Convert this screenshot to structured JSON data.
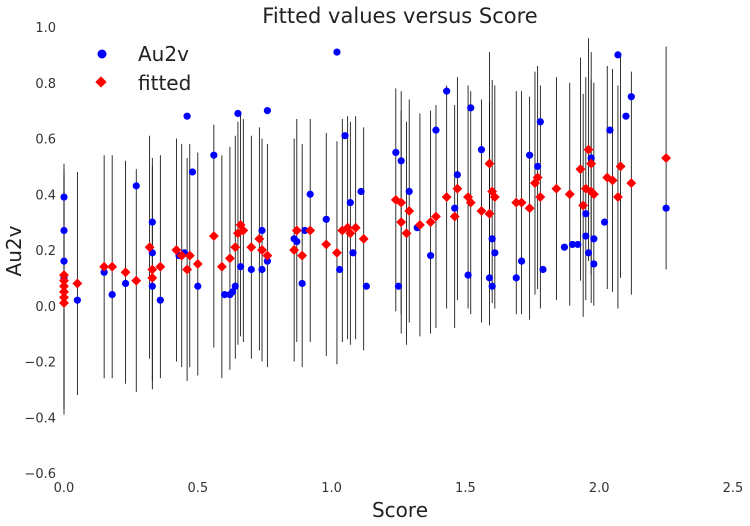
{
  "chart_data": {
    "type": "scatter",
    "title": "Fitted values versus Score",
    "xlabel": "Score",
    "ylabel": "Au2v",
    "xlim": [
      0.0,
      2.5
    ],
    "ylim": [
      -0.6,
      1.0
    ],
    "xticks": [
      "0.0",
      "0.5",
      "1.0",
      "1.5",
      "2.0",
      "2.5"
    ],
    "yticks": [
      "−0.6",
      "−0.4",
      "−0.2",
      "0.0",
      "0.2",
      "0.4",
      "0.6",
      "0.8",
      "1.0"
    ],
    "grid": false,
    "legend": "top-left",
    "series": [
      {
        "name": "Au2v",
        "color": "#0000ff",
        "marker": "circle",
        "points": [
          [
            0.0,
            0.39
          ],
          [
            0.0,
            0.27
          ],
          [
            0.0,
            0.16
          ],
          [
            0.0,
            0.1
          ],
          [
            0.05,
            0.02
          ],
          [
            0.15,
            0.12
          ],
          [
            0.18,
            0.04
          ],
          [
            0.23,
            0.08
          ],
          [
            0.27,
            0.43
          ],
          [
            0.33,
            0.3
          ],
          [
            0.33,
            0.19
          ],
          [
            0.33,
            0.07
          ],
          [
            0.36,
            0.02
          ],
          [
            0.43,
            0.18
          ],
          [
            0.45,
            0.19
          ],
          [
            0.46,
            0.68
          ],
          [
            0.48,
            0.48
          ],
          [
            0.5,
            0.07
          ],
          [
            0.56,
            0.54
          ],
          [
            0.6,
            0.04
          ],
          [
            0.62,
            0.04
          ],
          [
            0.63,
            0.05
          ],
          [
            0.64,
            0.07
          ],
          [
            0.65,
            0.69
          ],
          [
            0.66,
            0.14
          ],
          [
            0.7,
            0.13
          ],
          [
            0.74,
            0.27
          ],
          [
            0.74,
            0.13
          ],
          [
            0.76,
            0.7
          ],
          [
            0.76,
            0.16
          ],
          [
            0.86,
            0.24
          ],
          [
            0.87,
            0.23
          ],
          [
            0.89,
            0.08
          ],
          [
            0.9,
            0.27
          ],
          [
            0.92,
            0.4
          ],
          [
            0.98,
            0.31
          ],
          [
            1.02,
            0.91
          ],
          [
            1.03,
            0.13
          ],
          [
            1.05,
            0.61
          ],
          [
            1.07,
            0.37
          ],
          [
            1.08,
            0.19
          ],
          [
            1.11,
            0.41
          ],
          [
            1.13,
            0.07
          ],
          [
            1.24,
            0.55
          ],
          [
            1.25,
            0.07
          ],
          [
            1.26,
            0.52
          ],
          [
            1.29,
            0.41
          ],
          [
            1.32,
            0.28
          ],
          [
            1.37,
            0.18
          ],
          [
            1.39,
            0.63
          ],
          [
            1.43,
            0.77
          ],
          [
            1.46,
            0.35
          ],
          [
            1.47,
            0.47
          ],
          [
            1.51,
            0.11
          ],
          [
            1.52,
            0.71
          ],
          [
            1.56,
            0.56
          ],
          [
            1.59,
            0.1
          ],
          [
            1.6,
            0.24
          ],
          [
            1.6,
            0.07
          ],
          [
            1.61,
            0.19
          ],
          [
            1.69,
            0.1
          ],
          [
            1.71,
            0.16
          ],
          [
            1.74,
            0.54
          ],
          [
            1.77,
            0.5
          ],
          [
            1.78,
            0.66
          ],
          [
            1.79,
            0.13
          ],
          [
            1.87,
            0.21
          ],
          [
            1.9,
            0.22
          ],
          [
            1.92,
            0.22
          ],
          [
            1.95,
            0.25
          ],
          [
            1.95,
            0.33
          ],
          [
            1.96,
            0.19
          ],
          [
            1.97,
            0.53
          ],
          [
            1.98,
            0.24
          ],
          [
            1.98,
            0.15
          ],
          [
            2.02,
            0.3
          ],
          [
            2.04,
            0.63
          ],
          [
            2.07,
            0.9
          ],
          [
            2.1,
            0.68
          ],
          [
            2.12,
            0.75
          ],
          [
            2.25,
            0.35
          ]
        ]
      },
      {
        "name": "fitted",
        "color": "#ff0000",
        "marker": "diamond",
        "points": [
          [
            0.0,
            0.11
          ],
          [
            0.0,
            0.09
          ],
          [
            0.0,
            0.07
          ],
          [
            0.0,
            0.05
          ],
          [
            0.0,
            0.03
          ],
          [
            0.0,
            0.01
          ],
          [
            0.05,
            0.08
          ],
          [
            0.15,
            0.14
          ],
          [
            0.18,
            0.14
          ],
          [
            0.23,
            0.12
          ],
          [
            0.27,
            0.09
          ],
          [
            0.32,
            0.21
          ],
          [
            0.33,
            0.13
          ],
          [
            0.33,
            0.1
          ],
          [
            0.36,
            0.14
          ],
          [
            0.42,
            0.2
          ],
          [
            0.44,
            0.18
          ],
          [
            0.46,
            0.13
          ],
          [
            0.47,
            0.18
          ],
          [
            0.5,
            0.15
          ],
          [
            0.56,
            0.25
          ],
          [
            0.59,
            0.14
          ],
          [
            0.62,
            0.17
          ],
          [
            0.64,
            0.21
          ],
          [
            0.65,
            0.26
          ],
          [
            0.66,
            0.29
          ],
          [
            0.67,
            0.27
          ],
          [
            0.7,
            0.21
          ],
          [
            0.73,
            0.24
          ],
          [
            0.74,
            0.2
          ],
          [
            0.76,
            0.18
          ],
          [
            0.86,
            0.2
          ],
          [
            0.87,
            0.27
          ],
          [
            0.89,
            0.18
          ],
          [
            0.92,
            0.27
          ],
          [
            0.98,
            0.22
          ],
          [
            1.02,
            0.19
          ],
          [
            1.04,
            0.27
          ],
          [
            1.06,
            0.28
          ],
          [
            1.07,
            0.26
          ],
          [
            1.09,
            0.28
          ],
          [
            1.12,
            0.24
          ],
          [
            1.24,
            0.38
          ],
          [
            1.26,
            0.37
          ],
          [
            1.26,
            0.3
          ],
          [
            1.28,
            0.26
          ],
          [
            1.29,
            0.34
          ],
          [
            1.33,
            0.29
          ],
          [
            1.37,
            0.3
          ],
          [
            1.39,
            0.32
          ],
          [
            1.43,
            0.39
          ],
          [
            1.46,
            0.32
          ],
          [
            1.47,
            0.42
          ],
          [
            1.51,
            0.39
          ],
          [
            1.52,
            0.37
          ],
          [
            1.56,
            0.34
          ],
          [
            1.59,
            0.33
          ],
          [
            1.59,
            0.51
          ],
          [
            1.6,
            0.41
          ],
          [
            1.61,
            0.39
          ],
          [
            1.69,
            0.37
          ],
          [
            1.71,
            0.37
          ],
          [
            1.74,
            0.35
          ],
          [
            1.76,
            0.44
          ],
          [
            1.77,
            0.46
          ],
          [
            1.78,
            0.39
          ],
          [
            1.84,
            0.42
          ],
          [
            1.89,
            0.4
          ],
          [
            1.93,
            0.49
          ],
          [
            1.94,
            0.36
          ],
          [
            1.95,
            0.42
          ],
          [
            1.96,
            0.56
          ],
          [
            1.97,
            0.51
          ],
          [
            1.97,
            0.41
          ],
          [
            1.98,
            0.4
          ],
          [
            2.03,
            0.46
          ],
          [
            2.05,
            0.45
          ],
          [
            2.07,
            0.39
          ],
          [
            2.08,
            0.5
          ],
          [
            2.12,
            0.44
          ],
          [
            2.25,
            0.53
          ]
        ]
      }
    ]
  }
}
